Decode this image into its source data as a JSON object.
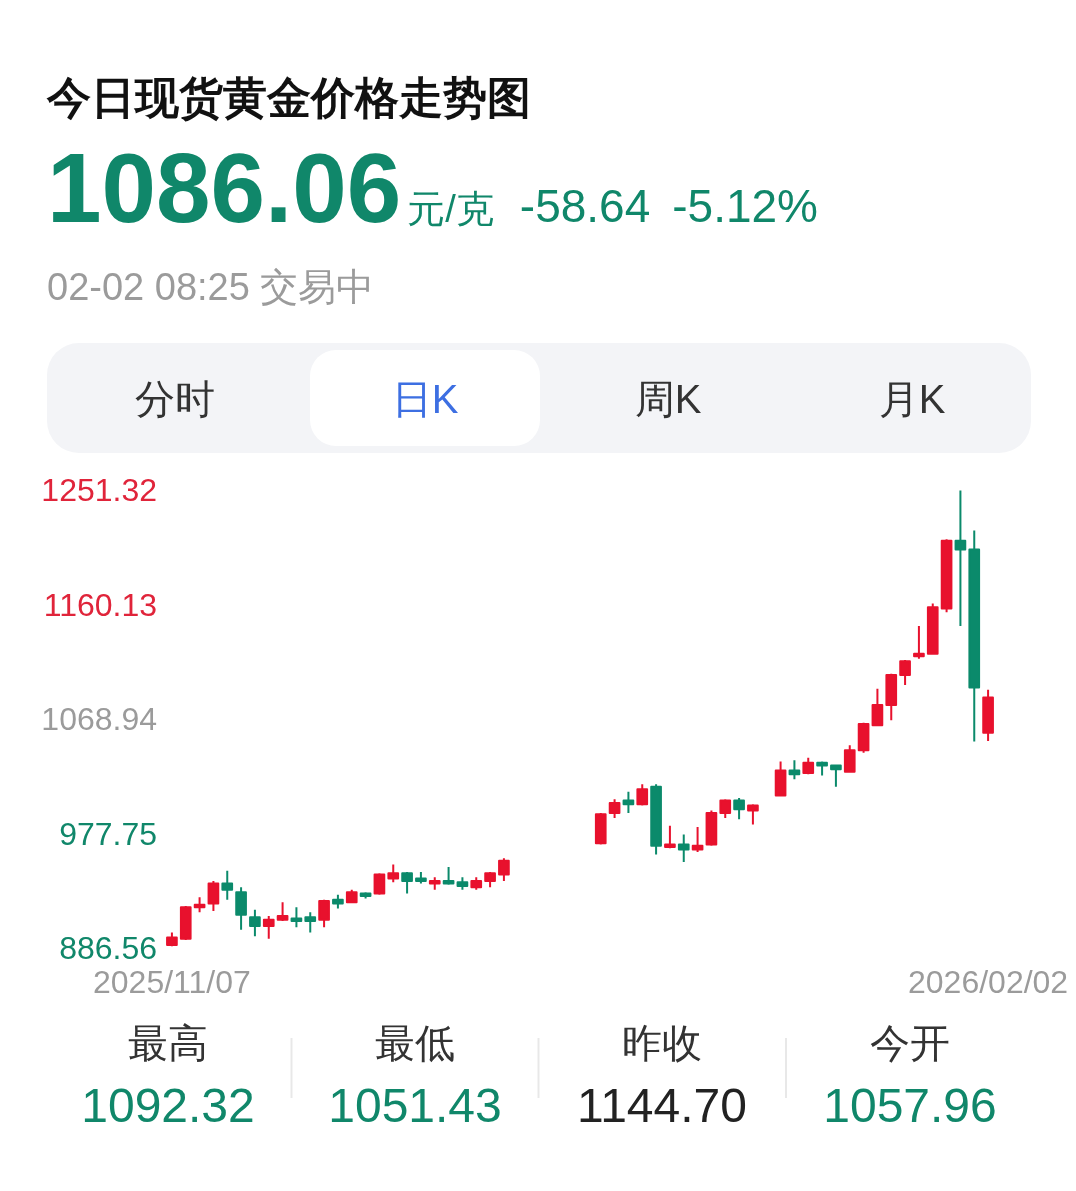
{
  "chart_data": {
    "type": "candlestick",
    "title": "今日现货黄金价格走势图",
    "categories": [
      "2025/11/07",
      null,
      null,
      null,
      null,
      null,
      null,
      null,
      null,
      null,
      null,
      null,
      null,
      null,
      null,
      null,
      null,
      null,
      null,
      null,
      null,
      null,
      null,
      null,
      null,
      null,
      null,
      null,
      null,
      null,
      null,
      null,
      null,
      null,
      null,
      null,
      null,
      null,
      null,
      null,
      null,
      null,
      null,
      null,
      null,
      null,
      null,
      null,
      null,
      null,
      null,
      null,
      null,
      null,
      null,
      null,
      null,
      null,
      null,
      "2026/02/02"
    ],
    "ohlc": [
      [
        889,
        899,
        888,
        895
      ],
      [
        894,
        920,
        893,
        919
      ],
      [
        919,
        927,
        915,
        921
      ],
      [
        922,
        940,
        916,
        938
      ],
      [
        938,
        948,
        925,
        933
      ],
      [
        931,
        935,
        901,
        913
      ],
      [
        911,
        917,
        896,
        904
      ],
      [
        904,
        912,
        894,
        909
      ],
      [
        909,
        923,
        908,
        912
      ],
      [
        910,
        919,
        903,
        908
      ],
      [
        911,
        915,
        899,
        908
      ],
      [
        909,
        925,
        903,
        924
      ],
      [
        925,
        929,
        918,
        922
      ],
      [
        923,
        933,
        923,
        931
      ],
      [
        930,
        931,
        926,
        928
      ],
      [
        930,
        946,
        929,
        945
      ],
      [
        942,
        953,
        939,
        946
      ],
      [
        946,
        947,
        930,
        940
      ],
      [
        942,
        947,
        938,
        940
      ],
      [
        938,
        943,
        933,
        940
      ],
      [
        940,
        951,
        937,
        938
      ],
      [
        939,
        943,
        933,
        936
      ],
      [
        935,
        943,
        933,
        940
      ],
      [
        940,
        947,
        935,
        946
      ],
      [
        945,
        958,
        940,
        956
      ],
      null,
      null,
      null,
      null,
      null,
      null,
      [
        970,
        994,
        969,
        993
      ],
      [
        994,
        1005,
        990,
        1002
      ],
      [
        1004,
        1011,
        994,
        1001
      ],
      [
        1001,
        1017,
        1000,
        1013
      ],
      [
        1015,
        1017,
        961,
        968
      ],
      [
        967,
        984,
        966,
        969
      ],
      [
        969,
        977,
        955,
        965
      ],
      [
        965,
        983,
        963,
        968
      ],
      [
        969,
        996,
        968,
        994
      ],
      [
        994,
        1005,
        990,
        1004
      ],
      [
        1004,
        1006,
        989,
        997
      ],
      [
        996,
        1001,
        985,
        1000
      ],
      null,
      [
        1008,
        1035,
        1008,
        1028
      ],
      [
        1028,
        1036,
        1021,
        1025
      ],
      [
        1026,
        1038,
        1025,
        1034
      ],
      [
        1034,
        1035,
        1024,
        1032
      ],
      [
        1032,
        1032,
        1015,
        1029
      ],
      [
        1027,
        1048,
        1027,
        1044
      ],
      [
        1044,
        1066,
        1042,
        1065
      ],
      [
        1064,
        1093,
        1064,
        1080
      ],
      [
        1080,
        1105,
        1068,
        1104
      ],
      [
        1104,
        1116,
        1096,
        1115
      ],
      [
        1119,
        1143,
        1117,
        1121
      ],
      [
        1121,
        1161,
        1121,
        1158
      ],
      [
        1157,
        1212,
        1154,
        1211
      ],
      [
        1211,
        1251,
        1143,
        1204
      ],
      [
        1204,
        1219,
        1051,
        1094
      ],
      [
        1057.96,
        1092.32,
        1051.43,
        1086.06
      ]
    ],
    "colors": [
      "#e8112d",
      "#e8112d",
      "#e8112d",
      "#e8112d",
      "#0b8a6b",
      "#0b8a6b",
      "#0b8a6b",
      "#e8112d",
      "#e8112d",
      "#0b8a6b",
      "#0b8a6b",
      "#e8112d",
      "#0b8a6b",
      "#e8112d",
      "#0b8a6b",
      "#e8112d",
      "#e8112d",
      "#0b8a6b",
      "#0b8a6b",
      "#e8112d",
      "#0b8a6b",
      "#0b8a6b",
      "#e8112d",
      "#e8112d",
      "#e8112d",
      null,
      null,
      null,
      null,
      null,
      null,
      "#e8112d",
      "#e8112d",
      "#0b8a6b",
      "#e8112d",
      "#0b8a6b",
      "#e8112d",
      "#0b8a6b",
      "#e8112d",
      "#e8112d",
      "#e8112d",
      "#0b8a6b",
      "#e8112d",
      null,
      "#e8112d",
      "#0b8a6b",
      "#e8112d",
      "#0b8a6b",
      "#0b8a6b",
      "#e8112d",
      "#e8112d",
      "#e8112d",
      "#e8112d",
      "#e8112d",
      "#e8112d",
      "#e8112d",
      "#e8112d",
      "#0b8a6b",
      "#0b8a6b",
      "#e8112d"
    ],
    "ylim": [
      886.56,
      1251.32
    ],
    "yticks": [
      886.56,
      977.75,
      1068.94,
      1160.13,
      1251.32
    ],
    "annotations": [
      "1086.06",
      "元/克",
      "-58.64",
      "-5.12%",
      "02-02 08:25 交易中",
      "分时",
      "日K",
      "周K",
      "月K",
      "最高",
      "1092.32",
      "最低",
      "1051.43",
      "昨收",
      "1144.70",
      "今开",
      "1057.96"
    ]
  }
}
